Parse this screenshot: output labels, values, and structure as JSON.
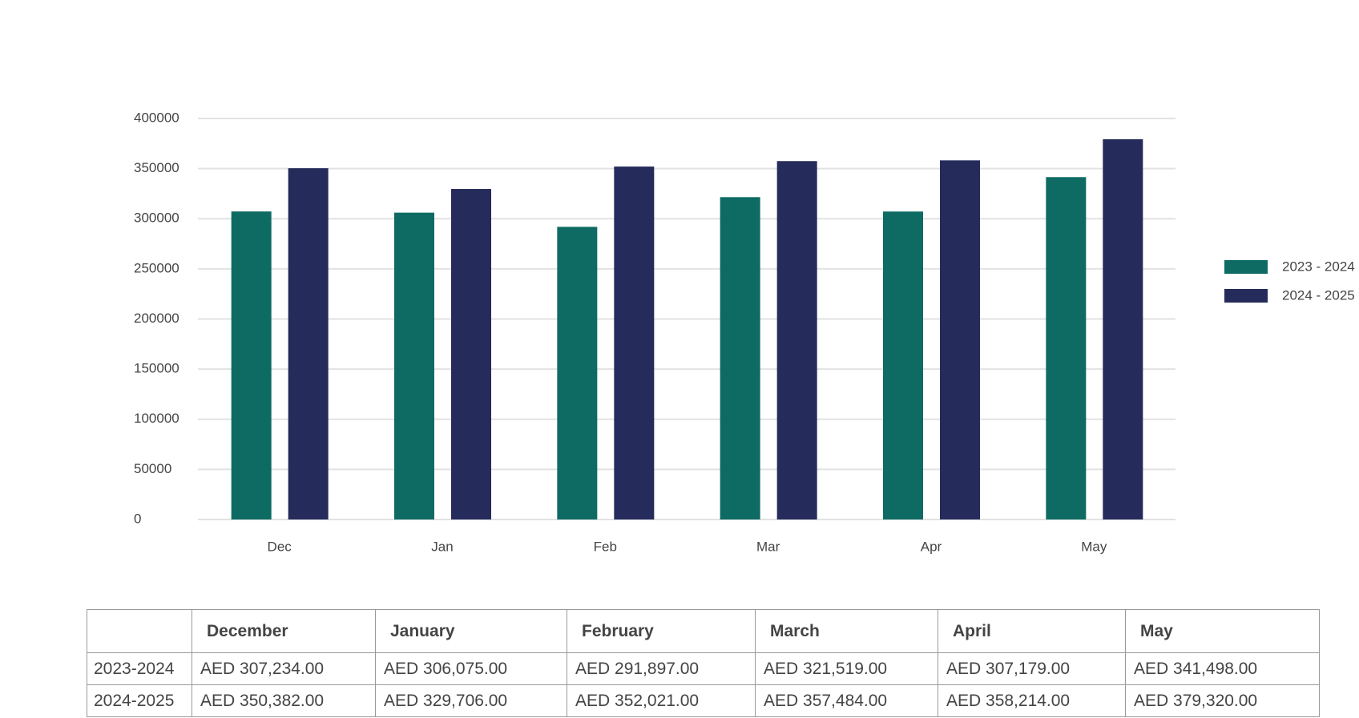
{
  "chart_data": {
    "type": "bar",
    "categories": [
      "Dec",
      "Jan",
      "Feb",
      "Mar",
      "Apr",
      "May"
    ],
    "series": [
      {
        "name": "2023 - 2024",
        "color": "#0d6b63",
        "values": [
          307234,
          306075,
          291897,
          321519,
          307179,
          341498
        ]
      },
      {
        "name": "2024 - 2025",
        "color": "#252b5a",
        "values": [
          350382,
          329706,
          352021,
          357484,
          358214,
          379320
        ]
      }
    ],
    "ylim": [
      0,
      400000
    ],
    "yticks": [
      0,
      50000,
      100000,
      150000,
      200000,
      250000,
      300000,
      350000,
      400000
    ],
    "grid": true,
    "legend": "right"
  },
  "table": {
    "header": [
      "December",
      "January",
      "February",
      "March",
      "April",
      "May"
    ],
    "rows": [
      {
        "label": "2023-2024",
        "cells": [
          "AED 307,234.00",
          "AED 306,075.00",
          "AED 291,897.00",
          "AED 321,519.00",
          "AED 307,179.00",
          "AED 341,498.00"
        ]
      },
      {
        "label": "2024-2025",
        "cells": [
          "AED 350,382.00",
          "AED 329,706.00",
          "AED 352,021.00",
          "AED 357,484.00",
          "AED 358,214.00",
          "AED 379,320.00"
        ]
      }
    ]
  }
}
